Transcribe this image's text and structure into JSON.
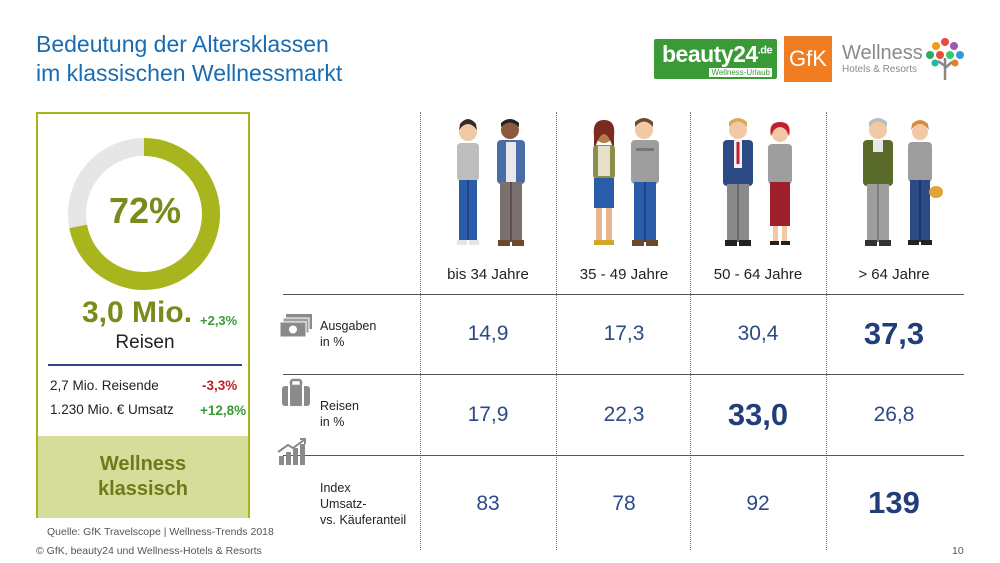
{
  "title": {
    "line1": "Bedeutung der Altersklassen",
    "line2": "im klassischen Wellnessmarkt"
  },
  "logos": {
    "beauty24": {
      "name": "beauty24",
      "tld": ".de",
      "sub": "Wellness-Urlaub"
    },
    "gfk": "GfK",
    "wellness": {
      "name": "Wellness",
      "sub": "Hotels & Resorts"
    }
  },
  "summary": {
    "donut_share": 0.72,
    "percent": "72%",
    "trips_value": "3,0 Mio.",
    "trips_delta": "+2,3%",
    "trips_label": "Reisen",
    "travelers": "2,7 Mio. Reisende",
    "travelers_delta": "-3,3%",
    "revenue": "1.230 Mio. € Umsatz",
    "revenue_delta": "+12,8%",
    "segment_line1": "Wellness",
    "segment_line2": "klassisch",
    "colors": {
      "accent": "#a8b51c",
      "donut_bg": "#e6e6e6"
    }
  },
  "table": {
    "columns": [
      "bis 34 Jahre",
      "35 - 49 Jahre",
      "50 - 64 Jahre",
      "> 64 Jahre"
    ],
    "rows": [
      {
        "label_line1": "Ausgaben",
        "label_line2": "in %",
        "label_line3": "",
        "icon": "money-icon",
        "values": [
          "14,9",
          "17,3",
          "30,4",
          "37,3"
        ]
      },
      {
        "label_line1": "Reisen",
        "label_line2": "in %",
        "label_line3": "",
        "icon": "suitcase-icon",
        "values": [
          "17,9",
          "22,3",
          "33,0",
          "26,8"
        ]
      },
      {
        "label_line1": "Index",
        "label_line2": "Umsatz-",
        "label_line3": "vs. Käuferanteil",
        "icon": "growth-chart-icon",
        "values": [
          "83",
          "78",
          "92",
          "139"
        ]
      }
    ]
  },
  "source": "Quelle: GfK Travelscope | Wellness-Trends 2018",
  "footer": "© GfK, beauty24 und Wellness-Hotels & Resorts",
  "page_number": "10"
}
